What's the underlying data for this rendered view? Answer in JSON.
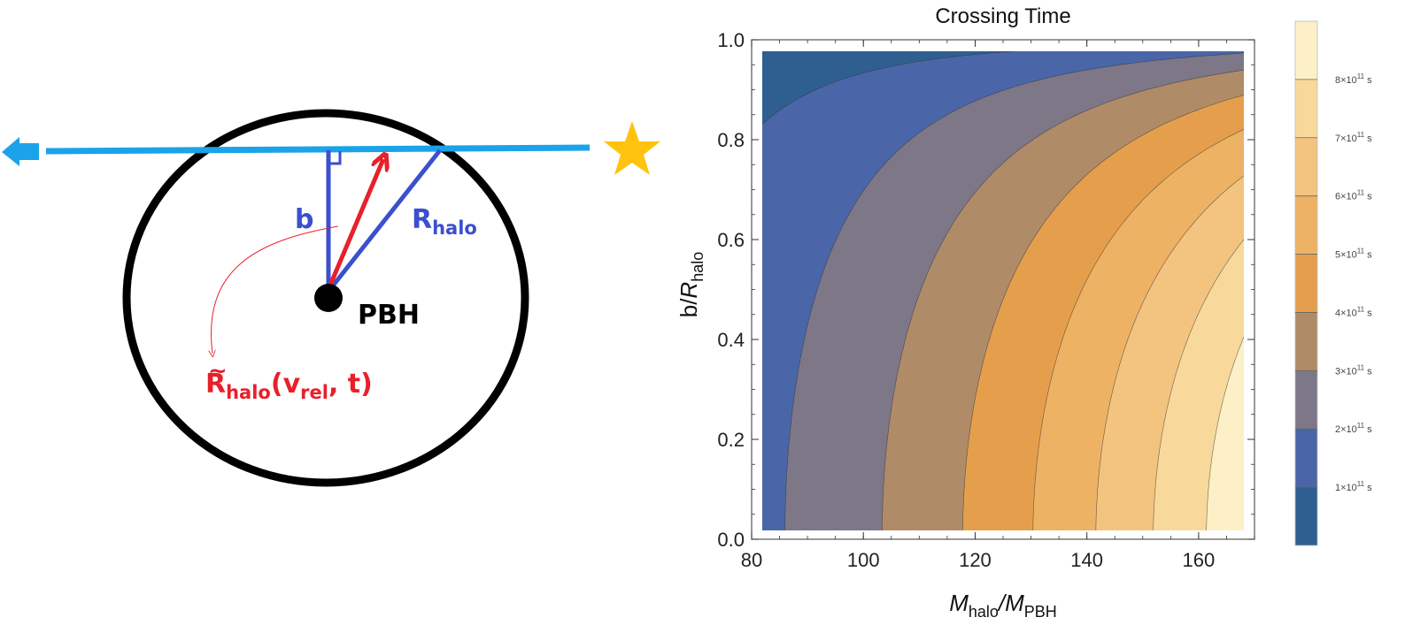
{
  "diagram": {
    "labels": {
      "b": "b",
      "r_halo_main": "R",
      "r_halo_sub": "halo",
      "pbh": "PBH",
      "rt_main": "R",
      "rt_tilde": "~",
      "rt_sub": "halo",
      "rt_args_open": "(v",
      "rt_args_sub": "rel",
      "rt_args_close": ", t)"
    },
    "colors": {
      "trajectory": "#1aa3e8",
      "star": "#ffc20e",
      "circle": "#000000",
      "impact_line": "#3b4fcf",
      "arrow": "#e8202a",
      "pbh": "#000000"
    }
  },
  "chart_data": {
    "type": "contour",
    "title": "Crossing Time",
    "xlabel_main": "M",
    "xlabel_sub1": "halo",
    "xlabel_slash": "/M",
    "xlabel_sub2": "PBH",
    "ylabel_b": "b/",
    "ylabel_main": "R",
    "ylabel_sub": "halo",
    "xlim": [
      80,
      170
    ],
    "ylim": [
      0.0,
      1.0
    ],
    "data_extent_y": [
      0.01,
      0.98
    ],
    "xticks": [
      80,
      100,
      120,
      140,
      160
    ],
    "xtick_labels": [
      "80",
      "100",
      "120",
      "140",
      "160"
    ],
    "yticks": [
      0.0,
      0.2,
      0.4,
      0.6,
      0.8,
      1.0
    ],
    "ytick_labels": [
      "0.0",
      "0.2",
      "0.4",
      "0.6",
      "0.8",
      "1.0"
    ],
    "contour_levels_s": [
      100000000000,
      200000000000,
      300000000000,
      400000000000,
      500000000000,
      600000000000,
      700000000000,
      800000000000
    ],
    "contour_colors": [
      "#2f5f91",
      "#4a66a8",
      "#7d7787",
      "#b08b68",
      "#e59f4c",
      "#eeb265",
      "#f3c47f",
      "#f8d99b",
      "#fdf0c7"
    ],
    "colorbar": {
      "levels_s": [
        100000000000,
        200000000000,
        300000000000,
        400000000000,
        500000000000,
        600000000000,
        700000000000,
        800000000000
      ],
      "labels": [
        {
          "pre": "1×10",
          "exp": "11",
          "unit": " s"
        },
        {
          "pre": "2×10",
          "exp": "11",
          "unit": " s"
        },
        {
          "pre": "3×10",
          "exp": "11",
          "unit": " s"
        },
        {
          "pre": "4×10",
          "exp": "11",
          "unit": " s"
        },
        {
          "pre": "5×10",
          "exp": "11",
          "unit": " s"
        },
        {
          "pre": "6×10",
          "exp": "11",
          "unit": " s"
        },
        {
          "pre": "7×10",
          "exp": "11",
          "unit": " s"
        },
        {
          "pre": "8×10",
          "exp": "11",
          "unit": " s"
        }
      ],
      "range_s": [
        0,
        900000000000
      ]
    }
  }
}
